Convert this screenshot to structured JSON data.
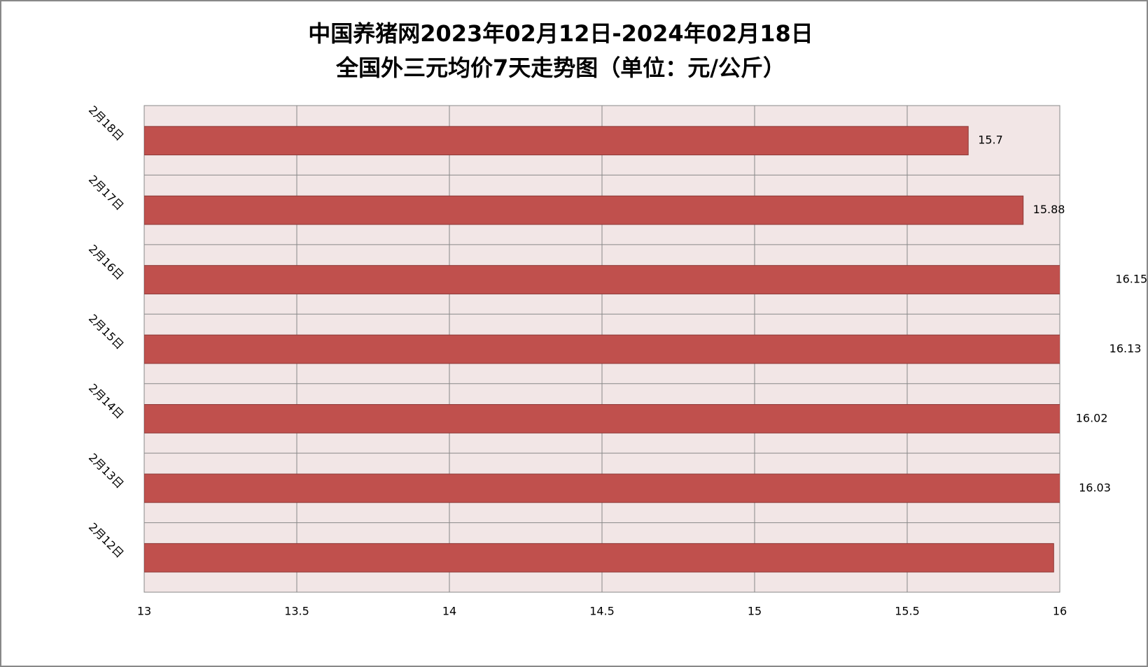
{
  "chart_data": {
    "type": "hbar",
    "title": [
      "中国养猪网2023年02月12日-2024年02月18日",
      "全国外三元均价7天走势图（单位：元/公斤）"
    ],
    "categories": [
      "2月18日",
      "2月17日",
      "2月16日",
      "2月15日",
      "2月14日",
      "2月13日",
      "2月12日"
    ],
    "values": [
      15.7,
      15.88,
      16.15,
      16.13,
      16.02,
      16.03,
      15.98
    ],
    "value_labels": [
      "15.7",
      "15.88",
      "16.15",
      "16.13",
      "16.02",
      "16.03",
      null
    ],
    "color": "#c0504d",
    "xlim": [
      13,
      16
    ],
    "xticks": [
      13,
      13.5,
      14,
      14.5,
      15,
      15.5,
      16
    ],
    "grid": true
  }
}
